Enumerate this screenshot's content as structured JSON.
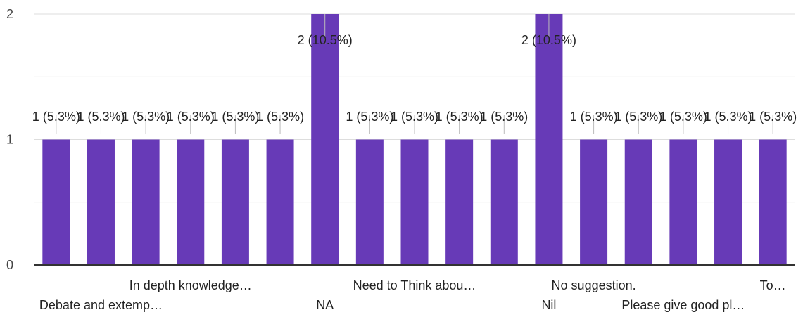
{
  "chart_data": {
    "type": "bar",
    "ylim": [
      0,
      2
    ],
    "y_ticks": [
      0,
      1,
      2
    ],
    "grid": true,
    "bar_color": "#673ab7",
    "categories": [
      "",
      "Debate and extemp…",
      "",
      "In depth knowledge…",
      "",
      "",
      "NA",
      "",
      "Need to Think abou…",
      "",
      "",
      "Nil",
      "No suggestion.",
      "",
      "Please give good pl…",
      "",
      "To…"
    ],
    "values": [
      1,
      1,
      1,
      1,
      1,
      1,
      2,
      1,
      1,
      1,
      1,
      2,
      1,
      1,
      1,
      1,
      1
    ],
    "data_labels": [
      "1 (5.3%)",
      "1 (5.3%)",
      "1 (5.3%)",
      "1 (5.3%)",
      "1 (5.3%)",
      "1 (5.3%)",
      "2 (10.5%)",
      "1 (5.3%)",
      "1 (5.3%)",
      "1 (5.3%)",
      "1 (5.3%)",
      "2 (10.5%)",
      "1 (5.3%)",
      "1 (5.3%)",
      "1 (5.3%)",
      "1 (5.3%)",
      "1 (5.3%)"
    ]
  }
}
